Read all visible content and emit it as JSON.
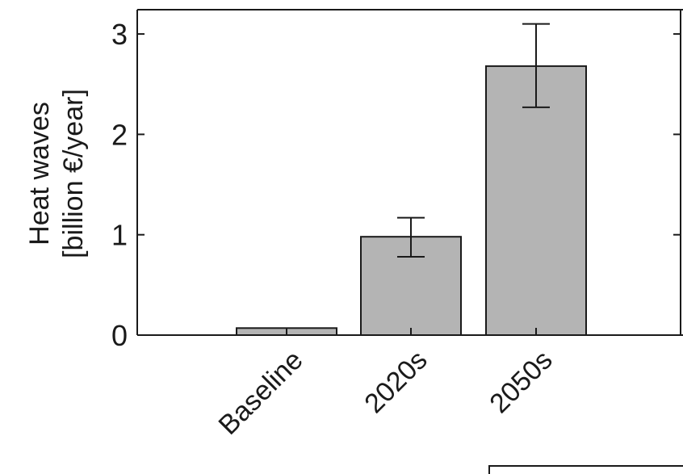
{
  "chart_data": {
    "type": "bar",
    "categories": [
      "Baseline",
      "2020s",
      "2050s"
    ],
    "values": [
      0.07,
      0.98,
      2.68
    ],
    "error_low": [
      null,
      0.78,
      2.27
    ],
    "error_high": [
      null,
      1.17,
      3.1
    ],
    "title": "",
    "xlabel": "",
    "ylabel_lines": [
      "Heat waves",
      "[billion €/year]"
    ],
    "ylim": [
      0,
      3.25
    ],
    "yticks": [
      0,
      1,
      2,
      3
    ],
    "ytick_labels": [
      "0",
      "1",
      "2",
      "3"
    ],
    "grid": false,
    "legend": "none",
    "bar_color": "#b4b4b4",
    "edge_color": "#1a1a1a"
  }
}
